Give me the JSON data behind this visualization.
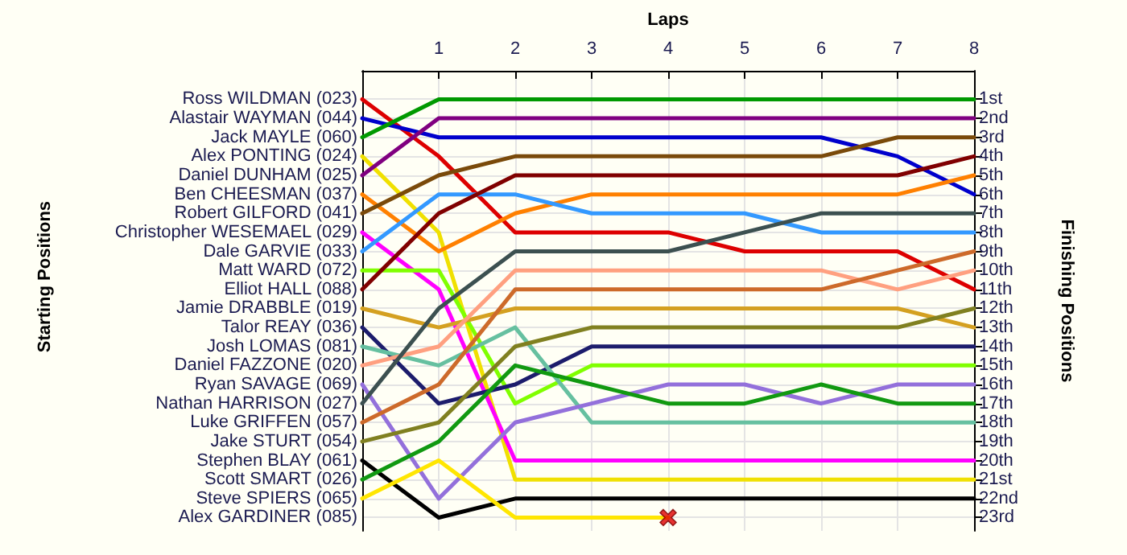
{
  "chart_data": {
    "type": "line",
    "xlabel": "Laps",
    "y2label": "Finishing Positions",
    "x": [
      0,
      1,
      2,
      3,
      4,
      5,
      6,
      7,
      8
    ],
    "xlim": [
      0,
      8
    ],
    "xticks": [
      1,
      2,
      3,
      4,
      5,
      6,
      7,
      8
    ],
    "y2lim": [
      23.7,
      -0.5
    ],
    "y2ticks": [
      {
        "value": 1,
        "label": "1st"
      },
      {
        "value": 2,
        "label": "2nd"
      },
      {
        "value": 3,
        "label": "3rd"
      },
      {
        "value": 4,
        "label": "4th"
      },
      {
        "value": 5,
        "label": "5th"
      },
      {
        "value": 6,
        "label": "6th"
      },
      {
        "value": 7,
        "label": "7th"
      },
      {
        "value": 8,
        "label": "8th"
      },
      {
        "value": 9,
        "label": "9th"
      },
      {
        "value": 10,
        "label": "10th"
      },
      {
        "value": 11,
        "label": "11th"
      },
      {
        "value": 12,
        "label": "12th"
      },
      {
        "value": 13,
        "label": "13th"
      },
      {
        "value": 14,
        "label": "14th"
      },
      {
        "value": 15,
        "label": "15th"
      },
      {
        "value": 16,
        "label": "16th"
      },
      {
        "value": 17,
        "label": "17th"
      },
      {
        "value": 18,
        "label": "18th"
      },
      {
        "value": 19,
        "label": "19th"
      },
      {
        "value": 20,
        "label": "20th"
      },
      {
        "value": 21,
        "label": "21st"
      },
      {
        "value": 22,
        "label": "22nd"
      },
      {
        "value": 23,
        "label": "23rd"
      }
    ],
    "grid": true,
    "legend": "left",
    "marker": "none",
    "line_style": "solid",
    "annotations": [
      "Starting Positions",
      "Alex GARDINER (085)"
    ],
    "series": [
      {
        "name": "Ross WILDMAN (023)",
        "axis": "y2",
        "color": "#dd0000",
        "values": [
          1,
          4,
          8,
          8,
          8,
          9,
          9,
          9,
          11
        ]
      },
      {
        "name": "Alastair WAYMAN (044)",
        "axis": "y2",
        "color": "#0000cc",
        "values": [
          2,
          3,
          3,
          3,
          3,
          3,
          3,
          4,
          6
        ]
      },
      {
        "name": "Jack MAYLE (060)",
        "axis": "y2",
        "color": "#009900",
        "values": [
          3,
          1,
          1,
          1,
          1,
          1,
          1,
          1,
          1
        ]
      },
      {
        "name": "Alex PONTING (024)",
        "axis": "y2",
        "color": "#f0e000",
        "values": [
          4,
          8,
          21,
          21,
          21,
          21,
          21,
          21,
          21
        ]
      },
      {
        "name": "Daniel DUNHAM (025)",
        "axis": "y2",
        "color": "#800080",
        "values": [
          5,
          2,
          2,
          2,
          2,
          2,
          2,
          2,
          2
        ]
      },
      {
        "name": "Ben CHEESMAN (037)",
        "axis": "y2",
        "color": "#ff8000",
        "values": [
          6,
          9,
          7,
          6,
          6,
          6,
          6,
          6,
          5
        ]
      },
      {
        "name": "Robert GILFORD (041)",
        "axis": "y2",
        "color": "#7a4a0a",
        "values": [
          7,
          5,
          4,
          4,
          4,
          4,
          4,
          3,
          3
        ]
      },
      {
        "name": "Christopher WESEMAEL (029)",
        "axis": "y2",
        "color": "#ff00ff",
        "values": [
          8,
          11,
          20,
          20,
          20,
          20,
          20,
          20,
          20
        ]
      },
      {
        "name": "Dale GARVIE (033)",
        "axis": "y2",
        "color": "#3399ff",
        "values": [
          9,
          6,
          6,
          7,
          7,
          7,
          8,
          8,
          8
        ]
      },
      {
        "name": "Matt WARD (072)",
        "axis": "y2",
        "color": "#80ff00",
        "values": [
          10,
          10,
          17,
          15,
          15,
          15,
          15,
          15,
          15
        ]
      },
      {
        "name": "Elliot HALL (088)",
        "axis": "y2",
        "color": "#800000",
        "values": [
          11,
          7,
          5,
          5,
          5,
          5,
          5,
          5,
          4
        ]
      },
      {
        "name": "Jamie DRABBLE (019)",
        "axis": "y2",
        "color": "#d4a020",
        "values": [
          12,
          13,
          12,
          12,
          12,
          12,
          12,
          12,
          13
        ]
      },
      {
        "name": "Talor REAY (036)",
        "axis": "y2",
        "color": "#1c1c6c",
        "values": [
          13,
          17,
          16,
          14,
          14,
          14,
          14,
          14,
          14
        ]
      },
      {
        "name": "Josh LOMAS (081)",
        "axis": "y2",
        "color": "#66c0a0",
        "values": [
          14,
          15,
          13,
          18,
          18,
          18,
          18,
          18,
          18
        ]
      },
      {
        "name": "Daniel FAZZONE (020)",
        "axis": "y2",
        "color": "#ffa080",
        "values": [
          15,
          14,
          10,
          10,
          10,
          10,
          10,
          11,
          10
        ]
      },
      {
        "name": "Ryan SAVAGE (069)",
        "axis": "y2",
        "color": "#9370db",
        "values": [
          16,
          22,
          18,
          17,
          16,
          16,
          17,
          16,
          16
        ]
      },
      {
        "name": "Nathan HARRISON (027)",
        "axis": "y2",
        "color": "#3c5050",
        "values": [
          17,
          12,
          9,
          9,
          9,
          8,
          7,
          7,
          7
        ]
      },
      {
        "name": "Luke GRIFFEN (057)",
        "axis": "y2",
        "color": "#cd6a2a",
        "values": [
          18,
          16,
          11,
          11,
          11,
          11,
          11,
          10,
          9
        ]
      },
      {
        "name": "Jake STURT (054)",
        "axis": "y2",
        "color": "#808020",
        "values": [
          19,
          18,
          14,
          13,
          13,
          13,
          13,
          13,
          12
        ]
      },
      {
        "name": "Stephen BLAY (061)",
        "axis": "y2",
        "color": "#000000",
        "values": [
          20,
          23,
          22,
          22,
          22,
          22,
          22,
          22,
          22
        ]
      },
      {
        "name": "Scott SMART (026)",
        "axis": "y2",
        "color": "#119911",
        "values": [
          21,
          19,
          15,
          16,
          17,
          17,
          16,
          17,
          17
        ]
      },
      {
        "name": "Steve SPIERS (065)",
        "axis": "y2",
        "color": "#ffe600",
        "values": [
          22,
          20,
          23,
          23,
          23,
          null,
          null,
          null,
          null
        ]
      },
      {
        "type": "scatter",
        "axis": "y2",
        "marker": "cross",
        "color": "#e00000",
        "x": [
          4
        ],
        "values": [
          23
        ]
      }
    ]
  }
}
